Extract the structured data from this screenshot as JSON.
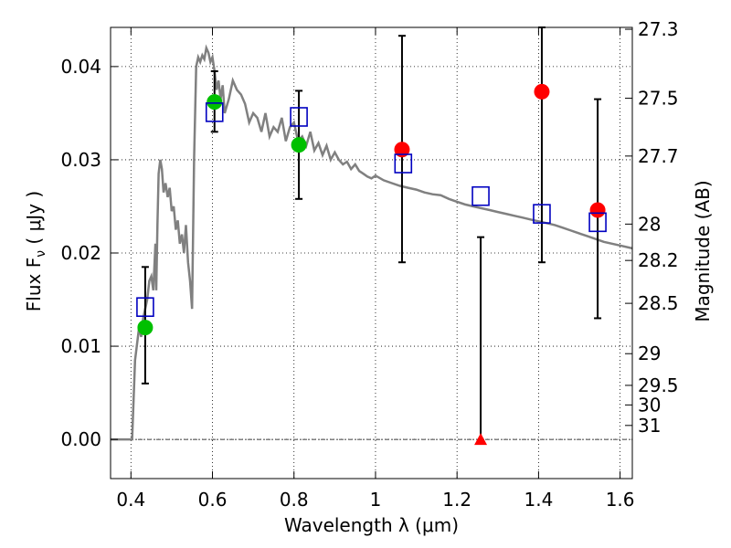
{
  "chart_data": {
    "type": "scatter",
    "title": "",
    "xlabel": "Wavelength  λ (μm)",
    "ylabel": "Flux  F",
    "ylabel_sub": "ν",
    "ylabel_unit": " ( μJy )",
    "y2label": "Magnitude (AB)",
    "xlim": [
      0.35,
      1.63
    ],
    "ylim": [
      -0.0042,
      0.0442
    ],
    "grid": true,
    "xticks": [
      0.4,
      0.6,
      0.8,
      1.0,
      1.2,
      1.4,
      1.6
    ],
    "xtick_labels": [
      "0.4",
      "0.6",
      "0.8",
      "1",
      "1.2",
      "1.4",
      "1.6"
    ],
    "yticks": [
      0.0,
      0.01,
      0.02,
      0.03,
      0.04
    ],
    "ytick_labels": [
      "0.00",
      "0.01",
      "0.02",
      "0.03",
      "0.04"
    ],
    "y2ticks": [
      {
        "label": "27.3",
        "flux": 0.044
      },
      {
        "label": "27.5",
        "flux": 0.0366
      },
      {
        "label": "27.7",
        "flux": 0.0304
      },
      {
        "label": "28",
        "flux": 0.0231
      },
      {
        "label": "28.2",
        "flux": 0.0192
      },
      {
        "label": "28.5",
        "flux": 0.0146
      },
      {
        "label": "29",
        "flux": 0.0092
      },
      {
        "label": "29.5",
        "flux": 0.0058
      },
      {
        "label": "30",
        "flux": 0.0037
      },
      {
        "label": "31",
        "flux": 0.0015
      }
    ],
    "colors": {
      "sed": "#808080",
      "detection_green": "#00c000",
      "detection_red": "#ff0000",
      "model_box": "#0000c0",
      "errorbar": "#000000",
      "zero_line": "#000000"
    },
    "sed_curve": {
      "x": [
        0.35,
        0.4,
        0.403,
        0.41,
        0.42,
        0.425,
        0.43,
        0.435,
        0.44,
        0.445,
        0.45,
        0.455,
        0.46,
        0.462,
        0.465,
        0.468,
        0.472,
        0.476,
        0.48,
        0.485,
        0.49,
        0.495,
        0.5,
        0.505,
        0.51,
        0.515,
        0.52,
        0.525,
        0.53,
        0.535,
        0.54,
        0.545,
        0.55,
        0.555,
        0.56,
        0.565,
        0.57,
        0.575,
        0.58,
        0.585,
        0.59,
        0.595,
        0.6,
        0.605,
        0.61,
        0.615,
        0.62,
        0.625,
        0.63,
        0.64,
        0.65,
        0.66,
        0.67,
        0.68,
        0.69,
        0.7,
        0.71,
        0.72,
        0.73,
        0.74,
        0.75,
        0.76,
        0.77,
        0.78,
        0.79,
        0.8,
        0.81,
        0.82,
        0.83,
        0.84,
        0.85,
        0.86,
        0.87,
        0.88,
        0.89,
        0.9,
        0.91,
        0.92,
        0.93,
        0.94,
        0.95,
        0.96,
        0.97,
        0.98,
        0.99,
        1.0,
        1.02,
        1.04,
        1.06,
        1.08,
        1.1,
        1.12,
        1.14,
        1.16,
        1.18,
        1.2,
        1.22,
        1.24,
        1.26,
        1.28,
        1.3,
        1.32,
        1.34,
        1.36,
        1.38,
        1.4,
        1.42,
        1.44,
        1.46,
        1.48,
        1.5,
        1.52,
        1.54,
        1.56,
        1.58,
        1.6,
        1.63
      ],
      "y": [
        0.0,
        0.0,
        0.0,
        0.0085,
        0.012,
        0.011,
        0.013,
        0.014,
        0.015,
        0.017,
        0.0175,
        0.016,
        0.021,
        0.016,
        0.023,
        0.0285,
        0.03,
        0.029,
        0.0265,
        0.0275,
        0.026,
        0.027,
        0.0245,
        0.025,
        0.0225,
        0.0235,
        0.021,
        0.022,
        0.02,
        0.023,
        0.019,
        0.017,
        0.014,
        0.03,
        0.04,
        0.041,
        0.0405,
        0.0412,
        0.0408,
        0.042,
        0.0415,
        0.0405,
        0.041,
        0.0395,
        0.0375,
        0.0385,
        0.0365,
        0.038,
        0.035,
        0.0365,
        0.0385,
        0.0375,
        0.037,
        0.036,
        0.034,
        0.035,
        0.0345,
        0.033,
        0.035,
        0.0325,
        0.0335,
        0.033,
        0.0345,
        0.032,
        0.0335,
        0.034,
        0.032,
        0.0325,
        0.0315,
        0.033,
        0.031,
        0.0318,
        0.0305,
        0.0315,
        0.03,
        0.0308,
        0.03,
        0.0295,
        0.0298,
        0.029,
        0.0295,
        0.0288,
        0.0285,
        0.0282,
        0.028,
        0.0283,
        0.0278,
        0.0275,
        0.0272,
        0.027,
        0.0268,
        0.0265,
        0.0263,
        0.0262,
        0.0258,
        0.0255,
        0.0252,
        0.025,
        0.0248,
        0.0246,
        0.0244,
        0.0242,
        0.024,
        0.0238,
        0.0236,
        0.0234,
        0.0232,
        0.023,
        0.0227,
        0.0224,
        0.0221,
        0.0218,
        0.0215,
        0.0212,
        0.021,
        0.0208,
        0.0205
      ]
    },
    "series": [
      {
        "name": "",
        "marker": "circle",
        "color": "#00c000",
        "points": [
          {
            "x": 0.435,
            "y": 0.012,
            "yerr_low": 0.006,
            "yerr_high": 0.0185
          },
          {
            "x": 0.605,
            "y": 0.0362,
            "yerr_low": 0.033,
            "yerr_high": 0.0395
          },
          {
            "x": 0.812,
            "y": 0.0316,
            "yerr_low": 0.0258,
            "yerr_high": 0.0374
          }
        ]
      },
      {
        "name": "",
        "marker": "circle",
        "color": "#ff0000",
        "points": [
          {
            "x": 1.065,
            "y": 0.0311,
            "yerr_low": 0.019,
            "yerr_high": 0.0433
          },
          {
            "x": 1.408,
            "y": 0.0373,
            "yerr_low": 0.019,
            "yerr_high": 0.0442
          },
          {
            "x": 1.545,
            "y": 0.0246,
            "yerr_low": 0.013,
            "yerr_high": 0.0365
          }
        ]
      },
      {
        "name": "",
        "marker": "triangle",
        "color": "#ff0000",
        "points": [
          {
            "x": 1.258,
            "y": 0.0,
            "yerr_low": 0.0,
            "yerr_high": 0.0217
          }
        ]
      },
      {
        "name": "",
        "marker": "square",
        "color": "#0000c0",
        "points": [
          {
            "x": 0.435,
            "y": 0.0142
          },
          {
            "x": 0.605,
            "y": 0.0351
          },
          {
            "x": 0.812,
            "y": 0.0346
          },
          {
            "x": 1.068,
            "y": 0.0296
          },
          {
            "x": 1.258,
            "y": 0.0261
          },
          {
            "x": 1.408,
            "y": 0.0242
          },
          {
            "x": 1.545,
            "y": 0.0233
          }
        ]
      }
    ]
  }
}
